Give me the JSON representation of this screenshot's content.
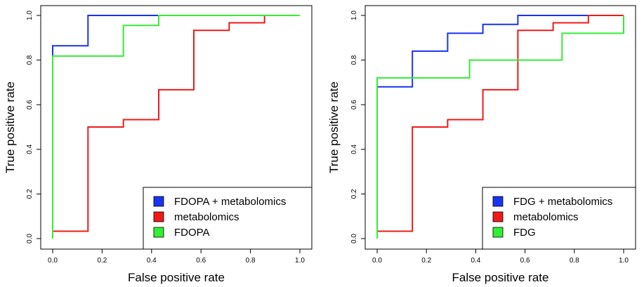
{
  "chart_data": [
    {
      "type": "line",
      "subtype": "roc-step",
      "title": "",
      "xlabel": "False positive rate",
      "ylabel": "True positive rate",
      "xlim": [
        0,
        1
      ],
      "ylim": [
        0,
        1
      ],
      "xticks": [
        "0.0",
        "0.2",
        "0.4",
        "0.6",
        "0.8",
        "1.0"
      ],
      "yticks": [
        "0.0",
        "0.2",
        "0.4",
        "0.6",
        "0.8",
        "1.0"
      ],
      "grid": false,
      "legend_position": "bottom-right",
      "series": [
        {
          "name": "FDOPA + metabolomics",
          "color": "#1a33ee",
          "x": [
            0,
            0,
            0.143,
            0.143,
            0.429
          ],
          "y": [
            0,
            0.864,
            0.864,
            1,
            1
          ]
        },
        {
          "name": "metabolomics",
          "color": "#ee1a1a",
          "x": [
            0,
            0,
            0.143,
            0.143,
            0.286,
            0.286,
            0.429,
            0.429,
            0.571,
            0.571,
            0.714,
            0.714,
            0.857,
            0.857
          ],
          "y": [
            0,
            0.033,
            0.033,
            0.5,
            0.5,
            0.533,
            0.533,
            0.667,
            0.667,
            0.933,
            0.933,
            0.967,
            0.967,
            1
          ]
        },
        {
          "name": "FDOPA",
          "color": "#33ee33",
          "x": [
            0,
            0,
            0.286,
            0.286,
            0.429,
            0.429,
            1
          ],
          "y": [
            0,
            0.818,
            0.818,
            0.955,
            0.955,
            1,
            1
          ]
        }
      ]
    },
    {
      "type": "line",
      "subtype": "roc-step",
      "title": "",
      "xlabel": "False positive rate",
      "ylabel": "True positive rate",
      "xlim": [
        0,
        1
      ],
      "ylim": [
        0,
        1
      ],
      "xticks": [
        "0.0",
        "0.2",
        "0.4",
        "0.6",
        "0.8",
        "1.0"
      ],
      "yticks": [
        "0.0",
        "0.2",
        "0.4",
        "0.6",
        "0.8",
        "1.0"
      ],
      "grid": false,
      "legend_position": "bottom-right",
      "series": [
        {
          "name": "FDG + metabolomics",
          "color": "#1a33ee",
          "x": [
            0,
            0,
            0.143,
            0.143,
            0.286,
            0.286,
            0.429,
            0.429,
            0.571,
            0.571,
            0.857
          ],
          "y": [
            0,
            0.68,
            0.68,
            0.84,
            0.84,
            0.92,
            0.92,
            0.96,
            0.96,
            1,
            1
          ]
        },
        {
          "name": "metabolomics",
          "color": "#ee1a1a",
          "x": [
            0,
            0,
            0.143,
            0.143,
            0.286,
            0.286,
            0.429,
            0.429,
            0.571,
            0.571,
            0.714,
            0.714,
            0.857,
            0.857,
            1
          ],
          "y": [
            0,
            0.033,
            0.033,
            0.5,
            0.5,
            0.533,
            0.533,
            0.667,
            0.667,
            0.933,
            0.933,
            0.967,
            0.967,
            1,
            1
          ]
        },
        {
          "name": "FDG",
          "color": "#33ee33",
          "x": [
            0,
            0,
            0.375,
            0.375,
            0.75,
            0.75,
            1,
            1
          ],
          "y": [
            0,
            0.72,
            0.72,
            0.8,
            0.8,
            0.92,
            0.92,
            1
          ]
        }
      ]
    }
  ]
}
